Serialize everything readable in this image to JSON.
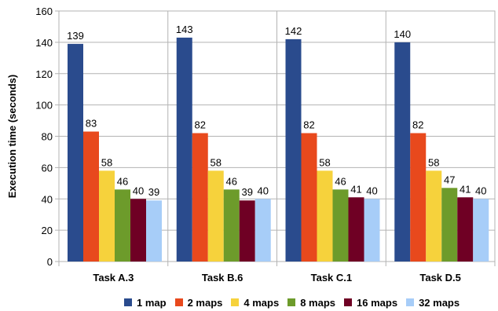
{
  "chart_data": {
    "type": "bar",
    "ylabel": "Execution time (seconds)",
    "xlabel": "",
    "ylim": [
      0,
      160
    ],
    "yticks": [
      0,
      20,
      40,
      60,
      80,
      100,
      120,
      140,
      160
    ],
    "grid": "horizontal",
    "legend_position": "bottom",
    "categories": [
      "Task A.3",
      "Task B.6",
      "Task C.1",
      "Task D.5"
    ],
    "series": [
      {
        "name": "1 map",
        "color": "#2a4b8d",
        "values": [
          139,
          143,
          142,
          140
        ]
      },
      {
        "name": "2 maps",
        "color": "#e8491d",
        "values": [
          83,
          82,
          82,
          82
        ]
      },
      {
        "name": "4 maps",
        "color": "#f6d23c",
        "values": [
          58,
          58,
          58,
          58
        ]
      },
      {
        "name": "8 maps",
        "color": "#6d9b2b",
        "values": [
          46,
          46,
          46,
          47
        ]
      },
      {
        "name": "16 maps",
        "color": "#6f0024",
        "values": [
          40,
          39,
          41,
          41
        ]
      },
      {
        "name": "32 maps",
        "color": "#a7cdf8",
        "values": [
          39,
          40,
          40,
          40
        ]
      }
    ]
  }
}
